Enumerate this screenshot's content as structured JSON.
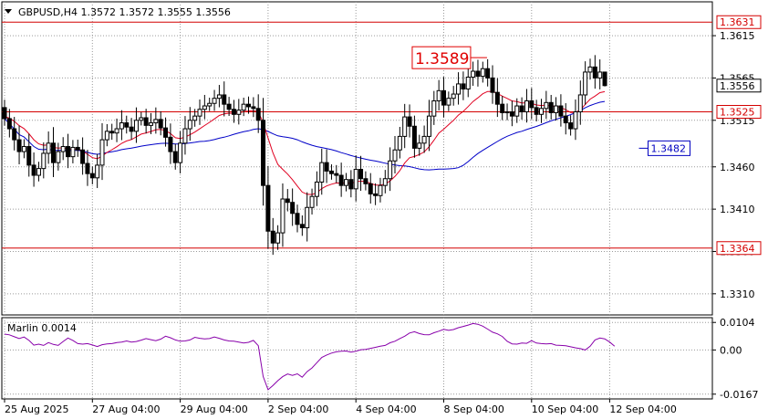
{
  "chart_data": [
    {
      "type": "candlestick",
      "title": "GBPUSD,H4  1.3572 1.3572 1.3555 1.3556",
      "symbol": "GBPUSD",
      "timeframe": "H4",
      "ohlc_last": [
        1.3572,
        1.3572,
        1.3555,
        1.3556
      ],
      "ylim": [
        1.3285,
        1.3655
      ],
      "y_ticks": [
        1.3615,
        1.3565,
        1.3515,
        1.346,
        1.341,
        1.336,
        1.331
      ],
      "y_tick_labels": [
        "1.3615",
        "1.3565",
        "1.3515",
        "1.3460",
        "1.3410",
        "1.3360",
        "1.3310"
      ],
      "x_tick_labels": [
        "25 Aug 2025",
        "27 Aug 04:00",
        "29 Aug 04:00",
        "2 Sep 04:00",
        "4 Sep 04:00",
        "8 Sep 04:00",
        "10 Sep 04:00",
        "12 Sep 04:00"
      ],
      "x_tick_bars": [
        0,
        18,
        36,
        54,
        72,
        90,
        108,
        124
      ],
      "levels": [
        {
          "value": 1.3631,
          "label": "1.3631",
          "color": "#d40000"
        },
        {
          "value": 1.3525,
          "label": "1.3525",
          "color": "#d40000"
        },
        {
          "value": 1.3364,
          "label": "1.3364",
          "color": "#d40000"
        }
      ],
      "current_price": {
        "value": 1.3556,
        "label": "1.3556"
      },
      "annotations": [
        {
          "text": "1.3589",
          "value": 1.3589,
          "bar": 97,
          "color": "#e00000"
        },
        {
          "text": "1.3482",
          "value": 1.3482,
          "bar": 130,
          "color": "#0000c0"
        }
      ],
      "closes": [
        1.3517,
        1.3505,
        1.3492,
        1.3478,
        1.3484,
        1.3462,
        1.345,
        1.3458,
        1.3476,
        1.3488,
        1.3465,
        1.3478,
        1.3484,
        1.3472,
        1.3483,
        1.348,
        1.3464,
        1.3452,
        1.3447,
        1.3462,
        1.3492,
        1.3502,
        1.35,
        1.3505,
        1.3512,
        1.3507,
        1.3502,
        1.3515,
        1.3518,
        1.3509,
        1.3512,
        1.3516,
        1.3506,
        1.3495,
        1.3478,
        1.3465,
        1.3488,
        1.3505,
        1.3515,
        1.352,
        1.3528,
        1.3532,
        1.3535,
        1.3541,
        1.3545,
        1.3534,
        1.3528,
        1.3522,
        1.3527,
        1.3534,
        1.3531,
        1.3529,
        1.3515,
        1.3438,
        1.3384,
        1.337,
        1.3382,
        1.3422,
        1.3418,
        1.3405,
        1.3392,
        1.3388,
        1.3412,
        1.3425,
        1.3442,
        1.3465,
        1.3455,
        1.3452,
        1.345,
        1.3438,
        1.3445,
        1.3434,
        1.3457,
        1.3446,
        1.344,
        1.3428,
        1.3426,
        1.3438,
        1.3446,
        1.3467,
        1.348,
        1.3496,
        1.3519,
        1.3508,
        1.3482,
        1.3488,
        1.3496,
        1.352,
        1.3538,
        1.355,
        1.3533,
        1.3541,
        1.3546,
        1.3558,
        1.3552,
        1.3566,
        1.3573,
        1.3567,
        1.3576,
        1.3565,
        1.3548,
        1.3534,
        1.3524,
        1.3525,
        1.352,
        1.3532,
        1.3525,
        1.3538,
        1.353,
        1.3522,
        1.3529,
        1.3536,
        1.3524,
        1.3532,
        1.352,
        1.3512,
        1.3505,
        1.3525,
        1.3545,
        1.3572,
        1.3578,
        1.3565,
        1.3572,
        1.3556
      ],
      "marlin": {
        "label": "Marlin 0.0014",
        "ylim": [
          -0.0185,
          0.0122
        ],
        "y_ticks": [
          0.0104,
          0.0,
          -0.0167
        ],
        "y_tick_labels": [
          "0.0104",
          "0.00",
          "-0.0167"
        ],
        "values": [
          0.006,
          0.0057,
          0.005,
          0.0043,
          0.0049,
          0.0036,
          0.0018,
          0.0022,
          0.0017,
          0.0028,
          0.0021,
          0.0017,
          0.0032,
          0.0045,
          0.0036,
          0.0024,
          0.0022,
          0.0024,
          0.0019,
          0.0013,
          0.002,
          0.0023,
          0.0024,
          0.0028,
          0.003,
          0.0034,
          0.003,
          0.0032,
          0.0037,
          0.0043,
          0.0039,
          0.0035,
          0.0041,
          0.0052,
          0.0046,
          0.0038,
          0.0033,
          0.0034,
          0.0038,
          0.0048,
          0.0044,
          0.0042,
          0.0043,
          0.0049,
          0.0044,
          0.0038,
          0.0034,
          0.0033,
          0.003,
          0.0026,
          0.0029,
          0.0036,
          0.0016,
          -0.01,
          -0.015,
          -0.0134,
          -0.0116,
          -0.0101,
          -0.0091,
          -0.0096,
          -0.009,
          -0.0103,
          -0.0082,
          -0.0068,
          -0.0048,
          -0.0028,
          -0.0019,
          -0.0012,
          -0.0007,
          -0.0005,
          -0.0004,
          -0.0008,
          -0.0005,
          0.0001,
          0.0002,
          0.0006,
          0.001,
          0.0014,
          0.0017,
          0.0027,
          0.0033,
          0.0043,
          0.0052,
          0.0064,
          0.0069,
          0.0062,
          0.0058,
          0.0057,
          0.0065,
          0.0071,
          0.0078,
          0.0074,
          0.0077,
          0.0084,
          0.0089,
          0.0094,
          0.01,
          0.0097,
          0.009,
          0.0079,
          0.0067,
          0.0061,
          0.0051,
          0.0033,
          0.0023,
          0.0022,
          0.0026,
          0.0025,
          0.0035,
          0.0026,
          0.0024,
          0.0023,
          0.0024,
          0.0018,
          0.0017,
          0.0016,
          0.0012,
          0.0008,
          0.0005,
          0.0,
          0.0014,
          0.0038,
          0.0045,
          0.0042,
          0.003,
          0.0014
        ]
      },
      "colors": {
        "bull": "#ffffff",
        "bear": "#000000",
        "level": "#d40000",
        "ma_slow": "#0000c8",
        "ma_fast": "#e00020",
        "marlin": "#8800aa",
        "grid": "#9a9a9a"
      }
    }
  ]
}
